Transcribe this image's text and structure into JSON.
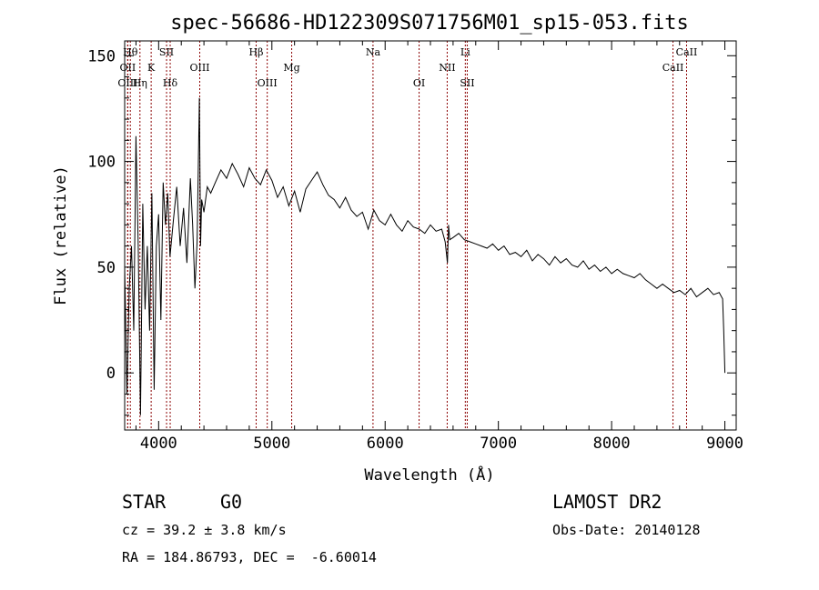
{
  "chart_data": {
    "type": "line",
    "title": "spec-56686-HD122309S071756M01_sp15-053.fits",
    "xlabel": "Wavelength (Å)",
    "ylabel": "Flux (relative)",
    "xlim": [
      3700,
      9100
    ],
    "ylim": [
      -27,
      157
    ],
    "x_ticks": [
      4000,
      5000,
      6000,
      7000,
      8000,
      9000
    ],
    "x_tick_labels": [
      "4000",
      "5000",
      "6000",
      "7000",
      "8000",
      "9000"
    ],
    "y_ticks": [
      0,
      50,
      100,
      150
    ],
    "y_tick_labels": [
      "0",
      "50",
      "100",
      "150"
    ],
    "line_color": "#000000",
    "marker_color": "#8b0000",
    "spectral_lines": [
      {
        "label": "OII",
        "x": 3727,
        "row": 2
      },
      {
        "label": "OIII",
        "x": 3727,
        "row": 3
      },
      {
        "label": "Hθ",
        "x": 3750,
        "row": 1
      },
      {
        "label": "Hη",
        "x": 3835,
        "row": 3
      },
      {
        "label": "K",
        "x": 3934,
        "row": 2
      },
      {
        "label": "SII",
        "x": 4070,
        "row": 1
      },
      {
        "label": "Hδ",
        "x": 4102,
        "row": 3
      },
      {
        "label": "OIII",
        "x": 4363,
        "row": 2
      },
      {
        "label": "Hβ",
        "x": 4861,
        "row": 1
      },
      {
        "label": "OIII",
        "x": 4959,
        "row": 3
      },
      {
        "label": "Mg",
        "x": 5175,
        "row": 2
      },
      {
        "label": "Na",
        "x": 5893,
        "row": 1
      },
      {
        "label": "OI",
        "x": 6300,
        "row": 3
      },
      {
        "label": "NII",
        "x": 6548,
        "row": 2
      },
      {
        "label": "Li",
        "x": 6708,
        "row": 1
      },
      {
        "label": "SII",
        "x": 6725,
        "row": 3
      },
      {
        "label": "CaII",
        "x": 8542,
        "row": 2
      },
      {
        "label": "CaII",
        "x": 8662,
        "row": 1
      }
    ],
    "series": [
      {
        "x": [
          3700,
          3720,
          3740,
          3760,
          3780,
          3800,
          3820,
          3840,
          3860,
          3880,
          3900,
          3920,
          3940,
          3960,
          3980,
          4000,
          4020,
          4040,
          4060,
          4080,
          4100,
          4130,
          4160,
          4190,
          4220,
          4250,
          4280,
          4300,
          4320,
          4340,
          4360,
          4370,
          4380,
          4400,
          4430,
          4460,
          4500,
          4550,
          4600,
          4650,
          4700,
          4750,
          4800,
          4850,
          4900,
          4950,
          5000,
          5050,
          5100,
          5150,
          5200,
          5250,
          5300,
          5350,
          5400,
          5450,
          5500,
          5550,
          5600,
          5650,
          5700,
          5750,
          5800,
          5850,
          5900,
          5950,
          6000,
          6050,
          6100,
          6150,
          6200,
          6250,
          6300,
          6350,
          6400,
          6450,
          6500,
          6530,
          6550,
          6560,
          6570,
          6600,
          6650,
          6700,
          6750,
          6800,
          6850,
          6900,
          6950,
          7000,
          7050,
          7100,
          7150,
          7200,
          7250,
          7300,
          7350,
          7400,
          7450,
          7500,
          7550,
          7600,
          7650,
          7700,
          7750,
          7800,
          7850,
          7900,
          7950,
          8000,
          8050,
          8100,
          8150,
          8200,
          8250,
          8300,
          8350,
          8400,
          8450,
          8500,
          8550,
          8600,
          8650,
          8700,
          8750,
          8800,
          8850,
          8900,
          8950,
          8980,
          8990,
          9000
        ],
        "y": [
          50,
          -10,
          40,
          60,
          20,
          112,
          60,
          -20,
          80,
          30,
          60,
          20,
          85,
          -8,
          60,
          75,
          25,
          90,
          70,
          85,
          55,
          72,
          88,
          60,
          78,
          52,
          92,
          70,
          40,
          62,
          130,
          60,
          82,
          76,
          88,
          85,
          90,
          96,
          92,
          99,
          94,
          88,
          97,
          92,
          89,
          96,
          91,
          83,
          88,
          79,
          86,
          76,
          87,
          91,
          95,
          89,
          84,
          82,
          78,
          83,
          77,
          74,
          76,
          68,
          77,
          72,
          70,
          75,
          70,
          67,
          72,
          69,
          68,
          66,
          70,
          67,
          68,
          62,
          52,
          70,
          63,
          64,
          66,
          63,
          62,
          61,
          60,
          59,
          61,
          58,
          60,
          56,
          57,
          55,
          58,
          53,
          56,
          54,
          51,
          55,
          52,
          54,
          51,
          50,
          53,
          49,
          51,
          48,
          50,
          47,
          49,
          47,
          46,
          45,
          47,
          44,
          42,
          40,
          42,
          40,
          38,
          39,
          37,
          40,
          36,
          38,
          40,
          37,
          38,
          35,
          20,
          0
        ]
      }
    ]
  },
  "info": {
    "class_label": "STAR",
    "subclass": "G0",
    "survey": "LAMOST DR2",
    "redshift": "cz = 39.2 ± 3.8 km/s",
    "obs_date": "Obs-Date: 20140128",
    "coords": "RA = 184.86793, DEC =  -6.60014"
  }
}
